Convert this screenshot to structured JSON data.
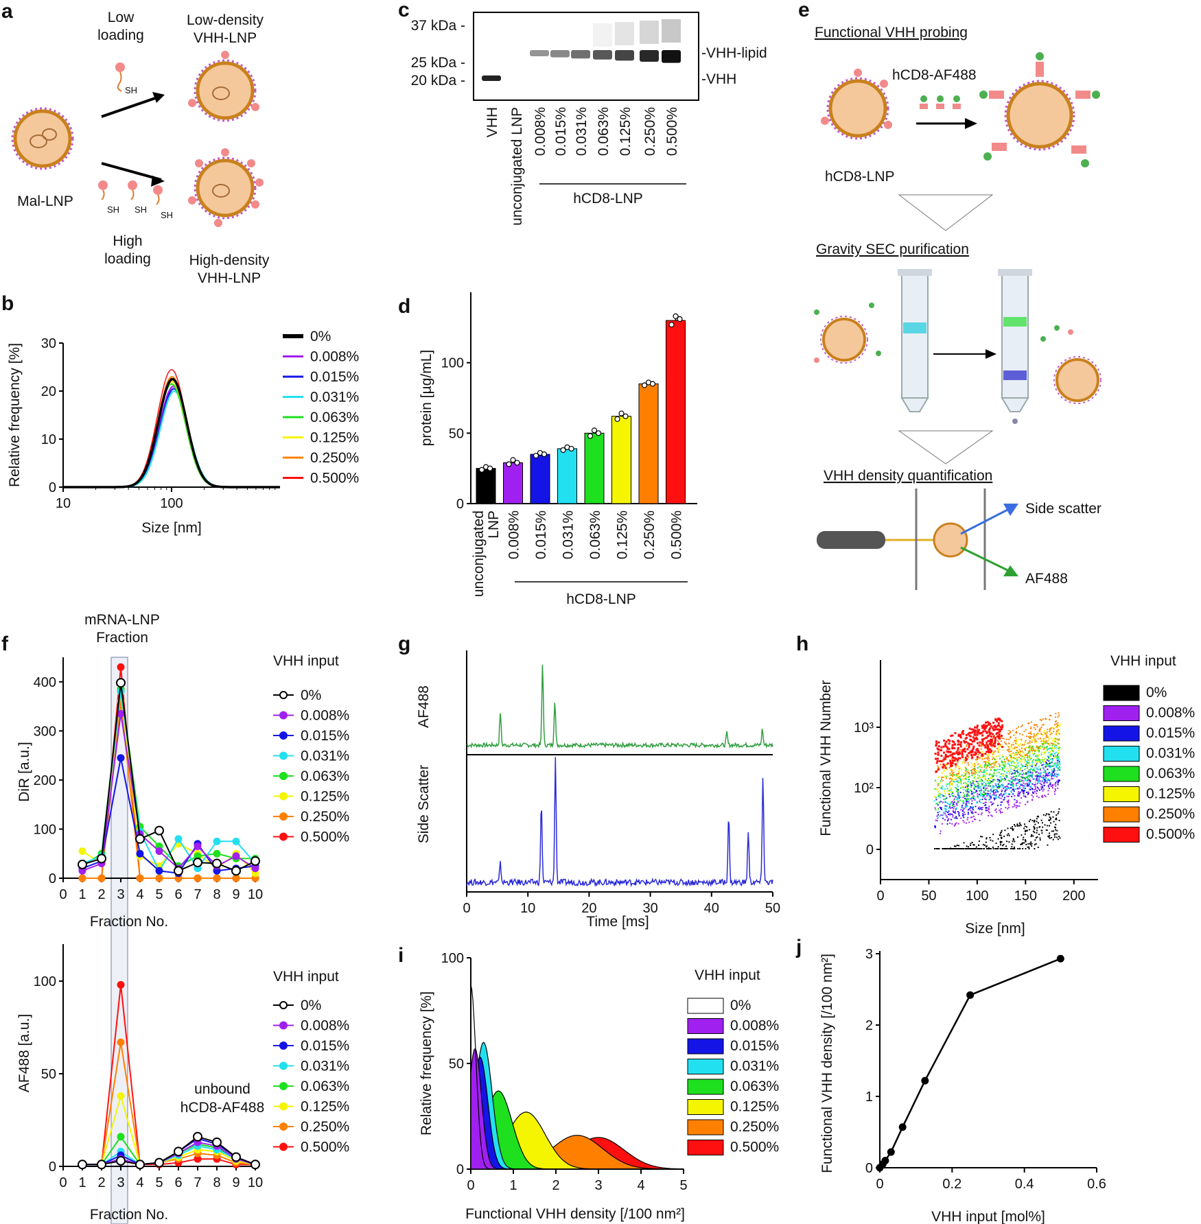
{
  "panels": {
    "a": {
      "label": "a",
      "low_loading": [
        "Low",
        "loading"
      ],
      "low_density": [
        "Low-density",
        "VHH-LNP"
      ],
      "high_loading": [
        "High",
        "loading"
      ],
      "high_density": [
        "High-density",
        "VHH-LNP"
      ],
      "mal_lnp": "Mal-LNP",
      "sh": "SH"
    },
    "b": {
      "label": "b"
    },
    "c": {
      "label": "c",
      "markers": [
        "37 kDa -",
        "25 kDa -",
        "20 kDa -"
      ],
      "bands": [
        "-VHH-lipid",
        "-VHH"
      ],
      "lanes": [
        "VHH",
        "unconjugated LNP",
        "0.008%",
        "0.015%",
        "0.031%",
        "0.063%",
        "0.125%",
        "0.250%",
        "0.500%"
      ],
      "group": "hCD8-LNP"
    },
    "d": {
      "label": "d",
      "group": "hCD8-LNP"
    },
    "e": {
      "label": "e",
      "step1": "Functional VHH probing",
      "reagent": "hCD8-AF488",
      "particle": "hCD8-LNP",
      "step2": "Gravity SEC purification",
      "step3": "VHH density quantification",
      "side_scatter": "Side scatter",
      "af488": "AF488"
    },
    "f": {
      "label": "f",
      "fraction_title": [
        "mRNA-LNP",
        "Fraction"
      ],
      "unbound": [
        "unbound",
        "hCD8-AF488"
      ]
    },
    "g": {
      "label": "g"
    },
    "h": {
      "label": "h"
    },
    "i": {
      "label": "i"
    },
    "j": {
      "label": "j"
    }
  },
  "series_names": [
    "0%",
    "0.008%",
    "0.015%",
    "0.031%",
    "0.063%",
    "0.125%",
    "0.250%",
    "0.500%"
  ],
  "series_colors": [
    "#000000",
    "#a020f0",
    "#1414e6",
    "#22e0f0",
    "#1ee01e",
    "#f5f500",
    "#ff8000",
    "#ff1010"
  ],
  "legend_title": "VHH input",
  "chart_data": [
    {
      "id": "b",
      "type": "line",
      "xlabel": "Size [nm]",
      "ylabel": "Relative frequency [%]",
      "xscale": "log",
      "xlim": [
        10,
        1000
      ],
      "ylim": [
        0,
        30
      ],
      "xticks": [
        "10",
        "100"
      ],
      "yticks": [
        0,
        10,
        20,
        30
      ],
      "series": [
        {
          "name": "0%",
          "peak_size": 102,
          "peak": 22.5
        },
        {
          "name": "0.008%",
          "peak_size": 104,
          "peak": 21.0
        },
        {
          "name": "0.015%",
          "peak_size": 105,
          "peak": 20.5
        },
        {
          "name": "0.031%",
          "peak_size": 106,
          "peak": 20.0
        },
        {
          "name": "0.063%",
          "peak_size": 100,
          "peak": 21.5
        },
        {
          "name": "0.125%",
          "peak_size": 101,
          "peak": 22.0
        },
        {
          "name": "0.250%",
          "peak_size": 101,
          "peak": 23.0
        },
        {
          "name": "0.500%",
          "peak_size": 100,
          "peak": 24.5
        }
      ]
    },
    {
      "id": "d",
      "type": "bar",
      "ylabel": "protein [µg/mL]",
      "ylim": [
        0,
        150
      ],
      "yticks": [
        0,
        50,
        100
      ],
      "categories": [
        "unconjugated LNP",
        "0.008%",
        "0.015%",
        "0.031%",
        "0.063%",
        "0.125%",
        "0.250%",
        "0.500%"
      ],
      "values": [
        25,
        29,
        35,
        39,
        50,
        62,
        85,
        130
      ],
      "points": [
        [
          24,
          26,
          25
        ],
        [
          28,
          31,
          29
        ],
        [
          34,
          36,
          35
        ],
        [
          38,
          40,
          39
        ],
        [
          48,
          52,
          50
        ],
        [
          60,
          64,
          62
        ],
        [
          84,
          86,
          85
        ],
        [
          127,
          133,
          131
        ]
      ]
    },
    {
      "id": "f1",
      "type": "line",
      "xlabel": "Fraction No.",
      "ylabel": "DiR [a.u.]",
      "x": [
        1,
        2,
        3,
        4,
        5,
        6,
        7,
        8,
        9,
        10
      ],
      "xlim": [
        0,
        10
      ],
      "ylim": [
        0,
        450
      ],
      "yticks": [
        0,
        100,
        200,
        300,
        400
      ],
      "series": [
        {
          "name": "0%",
          "values": [
            28,
            40,
            398,
            80,
            97,
            15,
            32,
            30,
            15,
            35
          ]
        },
        {
          "name": "0.008%",
          "values": [
            15,
            30,
            335,
            90,
            55,
            20,
            65,
            25,
            45,
            20
          ]
        },
        {
          "name": "0.015%",
          "values": [
            20,
            35,
            245,
            50,
            15,
            10,
            70,
            15,
            20,
            25
          ]
        },
        {
          "name": "0.031%",
          "values": [
            30,
            45,
            380,
            95,
            15,
            80,
            20,
            75,
            75,
            30
          ]
        },
        {
          "name": "0.063%",
          "values": [
            25,
            50,
            385,
            105,
            65,
            25,
            45,
            50,
            40,
            40
          ]
        },
        {
          "name": "0.125%",
          "values": [
            55,
            30,
            380,
            45,
            25,
            70,
            50,
            20,
            50,
            10
          ]
        },
        {
          "name": "0.250%",
          "values": [
            0,
            0,
            360,
            0,
            0,
            0,
            0,
            0,
            0,
            0
          ]
        },
        {
          "name": "0.500%",
          "values": [
            0,
            0,
            430,
            0,
            0,
            0,
            0,
            0,
            0,
            0
          ]
        }
      ]
    },
    {
      "id": "f2",
      "type": "line",
      "xlabel": "Fraction No.",
      "ylabel": "AF488 [a.u.]",
      "x": [
        1,
        2,
        3,
        4,
        5,
        6,
        7,
        8,
        9,
        10
      ],
      "xlim": [
        0,
        10
      ],
      "ylim": [
        0,
        120
      ],
      "yticks": [
        0,
        50,
        100
      ],
      "series": [
        {
          "name": "0%",
          "values": [
            1,
            1,
            3,
            1,
            2,
            8,
            16,
            13,
            5,
            1
          ]
        },
        {
          "name": "0.008%",
          "values": [
            1,
            1,
            4,
            1,
            2,
            7,
            13,
            11,
            4,
            1
          ]
        },
        {
          "name": "0.015%",
          "values": [
            1,
            1,
            6,
            1,
            2,
            8,
            15,
            12,
            5,
            1
          ]
        },
        {
          "name": "0.031%",
          "values": [
            1,
            1,
            8,
            1,
            2,
            6,
            11,
            9,
            4,
            1
          ]
        },
        {
          "name": "0.063%",
          "values": [
            1,
            1,
            16,
            1,
            2,
            7,
            12,
            10,
            4,
            1
          ]
        },
        {
          "name": "0.125%",
          "values": [
            1,
            1,
            38,
            1,
            2,
            5,
            9,
            8,
            3,
            1
          ]
        },
        {
          "name": "0.250%",
          "values": [
            1,
            1,
            67,
            1,
            2,
            4,
            7,
            6,
            2,
            1
          ]
        },
        {
          "name": "0.500%",
          "values": [
            1,
            1,
            98,
            1,
            1,
            2,
            4,
            4,
            1,
            1
          ]
        }
      ]
    },
    {
      "id": "g",
      "type": "line",
      "xlabel": "Time [ms]",
      "xlim": [
        0,
        50
      ],
      "xticks": [
        0,
        10,
        20,
        30,
        40,
        50
      ],
      "tracks": [
        {
          "name": "AF488",
          "color": "#2e9e3e",
          "peaks": [
            [
              5.5,
              0.4
            ],
            [
              12.4,
              1.0
            ],
            [
              14.4,
              0.55
            ],
            [
              42.5,
              0.15
            ],
            [
              48.3,
              0.2
            ]
          ]
        },
        {
          "name": "Side Scatter",
          "color": "#2a2ad8",
          "peaks": [
            [
              5.5,
              0.15
            ],
            [
              12.2,
              0.65
            ],
            [
              14.5,
              1.0
            ],
            [
              42.8,
              0.55
            ],
            [
              46.0,
              0.42
            ],
            [
              48.4,
              0.88
            ]
          ]
        }
      ]
    },
    {
      "id": "h",
      "type": "scatter",
      "xlabel": "Size [nm]",
      "ylabel": "Functional VHH Number",
      "xlim": [
        0,
        225
      ],
      "xticks": [
        0,
        50,
        100,
        150,
        200
      ],
      "yticks": [
        "0",
        "10²",
        "10³"
      ],
      "series": [
        {
          "name": "0%",
          "center_size": 95,
          "center_log": 0.1
        },
        {
          "name": "0.008%",
          "center_size": 110,
          "center_log": 1.3
        },
        {
          "name": "0.015%",
          "center_size": 105,
          "center_log": 1.5
        },
        {
          "name": "0.031%",
          "center_size": 110,
          "center_log": 1.7
        },
        {
          "name": "0.063%",
          "center_size": 95,
          "center_log": 1.9
        },
        {
          "name": "0.125%",
          "center_size": 95,
          "center_log": 2.2
        },
        {
          "name": "0.250%",
          "center_size": 95,
          "center_log": 2.5
        },
        {
          "name": "0.500%",
          "center_size": 80,
          "center_log": 2.9
        }
      ]
    },
    {
      "id": "i",
      "type": "area",
      "xlabel": "Functional VHH density [/100 nm²]",
      "ylabel": "Relative frequency [%]",
      "xlim": [
        0,
        5
      ],
      "ylim": [
        0,
        100
      ],
      "xticks": [
        0,
        1,
        2,
        3,
        4,
        5
      ],
      "yticks": [
        0,
        50,
        100
      ],
      "series": [
        {
          "name": "0%",
          "peak_x": 0.0,
          "peak": 87,
          "width": 0.12
        },
        {
          "name": "0.008%",
          "peak_x": 0.1,
          "peak": 57,
          "width": 0.15
        },
        {
          "name": "0.015%",
          "peak_x": 0.22,
          "peak": 53,
          "width": 0.18
        },
        {
          "name": "0.031%",
          "peak_x": 0.3,
          "peak": 60,
          "width": 0.2
        },
        {
          "name": "0.063%",
          "peak_x": 0.65,
          "peak": 37,
          "width": 0.32
        },
        {
          "name": "0.125%",
          "peak_x": 1.3,
          "peak": 27,
          "width": 0.45
        },
        {
          "name": "0.250%",
          "peak_x": 2.5,
          "peak": 16,
          "width": 0.6
        },
        {
          "name": "0.500%",
          "peak_x": 3.0,
          "peak": 15,
          "width": 0.6
        }
      ]
    },
    {
      "id": "j",
      "type": "line",
      "xlabel": "VHH input [mol%]",
      "ylabel": "Functional VHH density [/100 nm²]",
      "x": [
        0,
        0.008,
        0.015,
        0.031,
        0.063,
        0.125,
        0.25,
        0.5
      ],
      "y": [
        0.0,
        0.05,
        0.1,
        0.22,
        0.57,
        1.22,
        2.42,
        2.93
      ],
      "xlim": [
        0,
        0.6
      ],
      "ylim": [
        0,
        3
      ],
      "xticks": [
        0,
        0.2,
        0.4,
        0.6
      ],
      "yticks": [
        0,
        1,
        2,
        3
      ]
    }
  ]
}
